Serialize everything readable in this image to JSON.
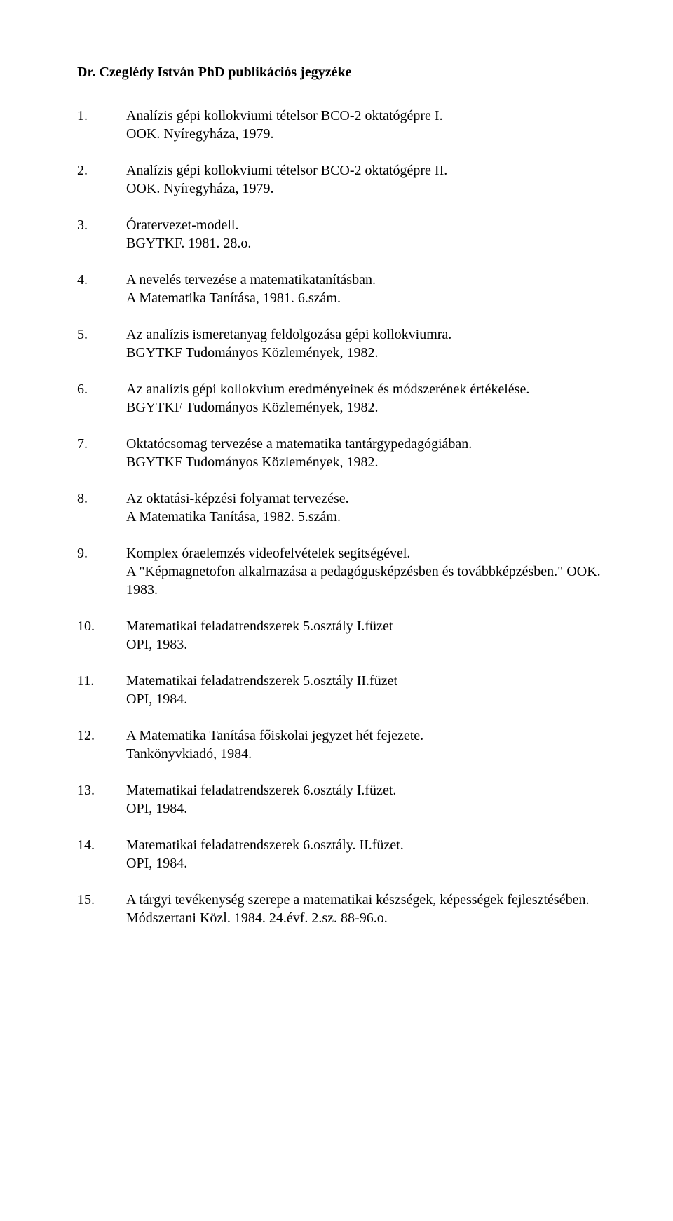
{
  "title": "Dr. Czeglédy István PhD publikációs jegyzéke",
  "entries": [
    {
      "num": "1.",
      "lines": [
        "Analízis gépi kollokviumi tételsor BCO-2 oktatógépre I.",
        "OOK. Nyíregyháza, 1979."
      ]
    },
    {
      "num": "2.",
      "lines": [
        "Analízis gépi kollokviumi tételsor BCO-2 oktatógépre II.",
        "OOK. Nyíregyháza, 1979."
      ]
    },
    {
      "num": "3.",
      "lines": [
        "Óratervezet-modell.",
        "BGYTKF. 1981. 28.o."
      ]
    },
    {
      "num": "4.",
      "lines": [
        "A nevelés tervezése a matematikatanításban.",
        "A Matematika Tanítása, 1981. 6.szám."
      ]
    },
    {
      "num": "5.",
      "lines": [
        "Az analízis ismeretanyag feldolgozása gépi kollokviumra.",
        "BGYTKF Tudományos Közlemények, 1982."
      ]
    },
    {
      "num": "6.",
      "lines": [
        "Az analízis gépi kollokvium eredményeinek és módszerének értékelése.",
        "BGYTKF Tudományos Közlemények, 1982."
      ]
    },
    {
      "num": "7.",
      "lines": [
        "Oktatócsomag tervezése a matematika tantárgypedagógiában.",
        "BGYTKF Tudományos Közlemények, 1982."
      ]
    },
    {
      "num": "8.",
      "lines": [
        "Az oktatási-képzési folyamat tervezése.",
        "A Matematika Tanítása, 1982. 5.szám."
      ]
    },
    {
      "num": "9.",
      "lines": [
        "Komplex óraelemzés videofelvételek segítségével.",
        "A \"Képmagnetofon alkalmazása a pedagógusképzésben és továbbképzésben.\" OOK. 1983."
      ]
    },
    {
      "num": "10.",
      "lines": [
        "Matematikai feladatrendszerek 5.osztály I.füzet",
        "OPI, 1983."
      ]
    },
    {
      "num": "11.",
      "lines": [
        "Matematikai feladatrendszerek 5.osztály II.füzet",
        "OPI, 1984."
      ]
    },
    {
      "num": "12.",
      "lines": [
        "A Matematika Tanítása főiskolai jegyzet hét fejezete.",
        "Tankönyvkiadó, 1984."
      ]
    },
    {
      "num": "13.",
      "lines": [
        "Matematikai feladatrendszerek 6.osztály I.füzet.",
        "OPI, 1984."
      ]
    },
    {
      "num": "14.",
      "lines": [
        "Matematikai feladatrendszerek 6.osztály. II.füzet.",
        "OPI, 1984."
      ]
    },
    {
      "num": "15.",
      "lines": [
        "A tárgyi tevékenység szerepe a matematikai készségek, képességek fejlesztésében.",
        "Módszertani Közl. 1984. 24.évf. 2.sz. 88-96.o."
      ]
    }
  ]
}
